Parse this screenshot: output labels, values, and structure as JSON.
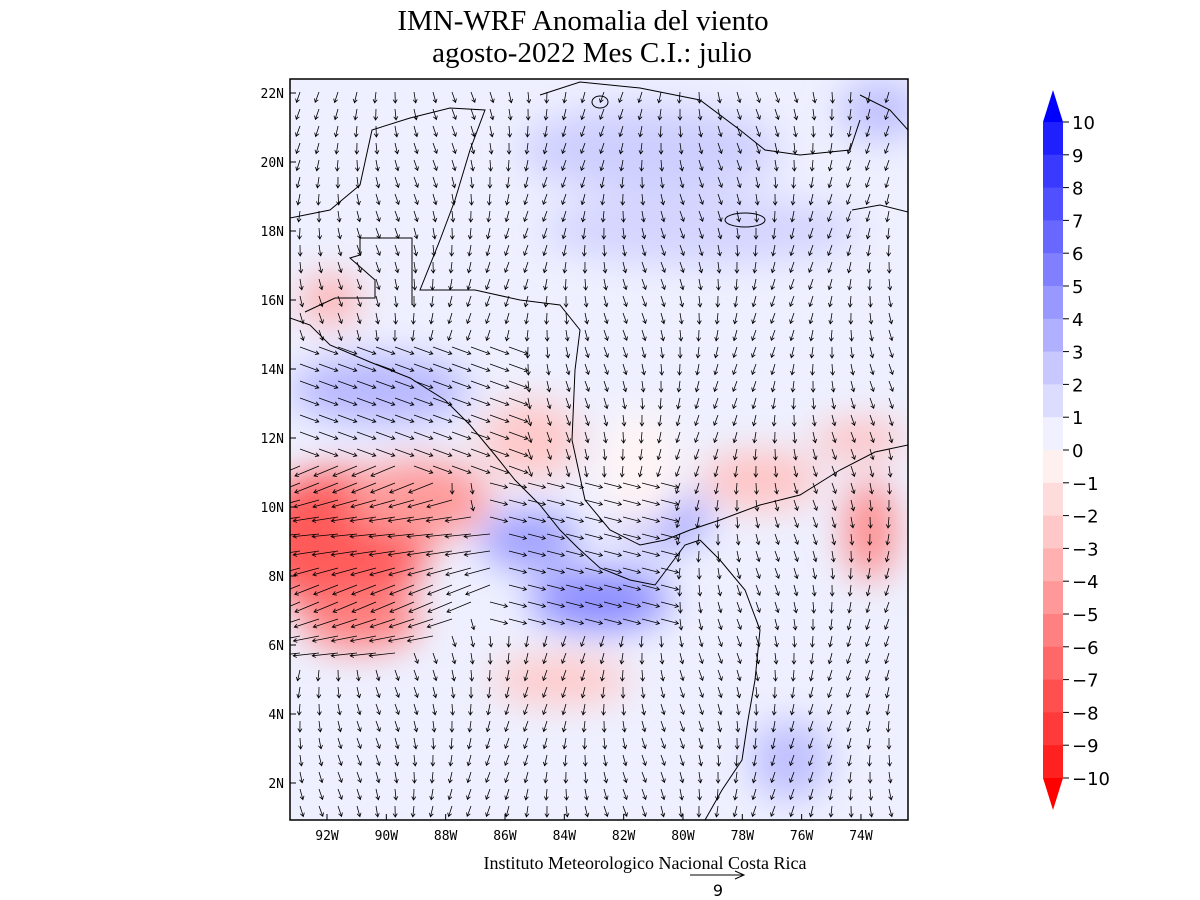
{
  "title": [
    "IMN-WRF Anomalia del viento",
    "agosto-2022 Mes C.I.: julio"
  ],
  "map": {
    "lat_labels": [
      "22N",
      "20N",
      "18N",
      "16N",
      "14N",
      "12N",
      "10N",
      "8N",
      "6N",
      "4N",
      "2N"
    ],
    "lon_labels": [
      "92W",
      "90W",
      "88W",
      "86W",
      "84W",
      "82W",
      "80W",
      "78W",
      "76W",
      "74W"
    ]
  },
  "colorbar": {
    "labels": [
      "10",
      "9",
      "8",
      "7",
      "6",
      "5",
      "4",
      "3",
      "2",
      "1",
      "0",
      "−1",
      "−2",
      "−3",
      "−4",
      "−5",
      "−6",
      "−7",
      "−8",
      "−9",
      "−10"
    ],
    "colors": [
      "#2020ff",
      "#3a3aff",
      "#5050ff",
      "#6868ff",
      "#8080ff",
      "#9898ff",
      "#b0b0ff",
      "#c8c8ff",
      "#dcdcff",
      "#f0f0ff",
      "#fff0f0",
      "#ffdcdc",
      "#ffc8c8",
      "#ffb0b0",
      "#ff9898",
      "#ff8080",
      "#ff6868",
      "#ff5050",
      "#ff3a3a",
      "#ff2020"
    ],
    "extend_colors": [
      "#0000ff",
      "#ff0000"
    ]
  },
  "footer": "Instituto Meteorologico Nacional Costa Rica",
  "reference_vector": {
    "label": "9"
  }
}
